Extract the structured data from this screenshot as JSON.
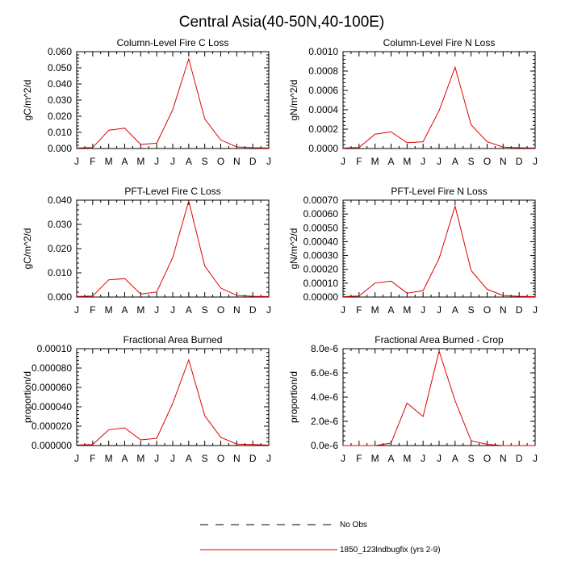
{
  "title": "Central Asia(40-50N,40-100E)",
  "months": [
    "J",
    "F",
    "M",
    "A",
    "M",
    "J",
    "J",
    "A",
    "S",
    "O",
    "N",
    "D",
    "J"
  ],
  "legend": [
    {
      "label": "No Obs",
      "style": "dashed",
      "color": "#000000"
    },
    {
      "label": "1850_123lndbugfix (yrs 2-9)",
      "style": "solid",
      "color": "#e00000"
    }
  ],
  "chart_data": [
    {
      "type": "line",
      "title": "Column-Level Fire C Loss",
      "ylabel": "gC/m^2/d",
      "ylim": [
        0,
        0.06
      ],
      "yticks": [
        0,
        0.01,
        0.02,
        0.03,
        0.04,
        0.05,
        0.06
      ],
      "ytick_labels": [
        "0.000",
        "0.010",
        "0.020",
        "0.030",
        "0.040",
        "0.050",
        "0.060"
      ],
      "series": [
        {
          "name": "1850_123lndbugfix (yrs 2-9)",
          "color": "#e00000",
          "values": [
            0.0003,
            0.0006,
            0.0113,
            0.0126,
            0.0025,
            0.0033,
            0.024,
            0.0555,
            0.0183,
            0.0053,
            0.001,
            0.0005,
            0.0003
          ]
        }
      ]
    },
    {
      "type": "line",
      "title": "Column-Level Fire N Loss",
      "ylabel": "gN/m^2/d",
      "ylim": [
        0,
        0.001
      ],
      "yticks": [
        0,
        0.0002,
        0.0004,
        0.0006,
        0.0008,
        0.001
      ],
      "ytick_labels": [
        "0.0000",
        "0.0002",
        "0.0004",
        "0.0006",
        "0.0008",
        "0.0010"
      ],
      "series": [
        {
          "name": "1850_123lndbugfix (yrs 2-9)",
          "color": "#e00000",
          "values": [
            5e-06,
            1e-05,
            0.000148,
            0.000172,
            6e-05,
            7e-05,
            0.00039,
            0.00084,
            0.000245,
            7e-05,
            1.5e-05,
            8e-06,
            5e-06
          ]
        }
      ]
    },
    {
      "type": "line",
      "title": "PFT-Level Fire C Loss",
      "ylabel": "gC/m^2/d",
      "ylim": [
        0,
        0.04
      ],
      "yticks": [
        0,
        0.01,
        0.02,
        0.03,
        0.04
      ],
      "ytick_labels": [
        "0.000",
        "0.010",
        "0.020",
        "0.030",
        "0.040"
      ],
      "series": [
        {
          "name": "1850_123lndbugfix (yrs 2-9)",
          "color": "#e00000",
          "values": [
            0.0002,
            0.0004,
            0.0071,
            0.0076,
            0.0012,
            0.0021,
            0.0163,
            0.0397,
            0.0128,
            0.0037,
            0.0007,
            0.0003,
            0.0002
          ]
        }
      ]
    },
    {
      "type": "line",
      "title": "PFT-Level Fire N Loss",
      "ylabel": "gN/m^2/d",
      "ylim": [
        0,
        0.0007
      ],
      "yticks": [
        0,
        0.0001,
        0.0002,
        0.0003,
        0.0004,
        0.0005,
        0.0006,
        0.0007
      ],
      "ytick_labels": [
        "0.00000",
        "0.00010",
        "0.00020",
        "0.00030",
        "0.00040",
        "0.00050",
        "0.00060",
        "0.00070"
      ],
      "series": [
        {
          "name": "1850_123lndbugfix (yrs 2-9)",
          "color": "#e00000",
          "values": [
            3e-06,
            7e-06,
            0.000101,
            0.000115,
            2.8e-05,
            4.6e-05,
            0.000278,
            0.000657,
            0.000192,
            5.6e-05,
            1.1e-05,
            5e-06,
            3e-06
          ]
        }
      ]
    },
    {
      "type": "line",
      "title": "Fractional Area Burned",
      "ylabel": "proportion/d",
      "ylim": [
        0,
        0.0001
      ],
      "yticks": [
        0,
        2e-05,
        4e-05,
        6e-05,
        8e-05,
        0.0001
      ],
      "ytick_labels": [
        "0.000000",
        "0.000020",
        "0.000040",
        "0.000060",
        "0.000080",
        "0.00010"
      ],
      "series": [
        {
          "name": "1850_123lndbugfix (yrs 2-9)",
          "color": "#e00000",
          "values": [
            5e-07,
            1e-06,
            1.62e-05,
            1.82e-05,
            5.8e-06,
            7.5e-06,
            4.35e-05,
            8.85e-05,
            3.08e-05,
            8.5e-06,
            1.5e-06,
            1e-06,
            5e-07
          ]
        }
      ]
    },
    {
      "type": "line",
      "title": "Fractional Area Burned - Crop",
      "ylabel": "proportion/d",
      "ylim": [
        0,
        8e-06
      ],
      "yticks": [
        0,
        2e-06,
        4e-06,
        6e-06,
        8e-06
      ],
      "ytick_labels": [
        "0.0e-6",
        "2.0e-6",
        "4.0e-6",
        "6.0e-6",
        "8.0e-6"
      ],
      "series": [
        {
          "name": "1850_123lndbugfix (yrs 2-9)",
          "color": "#e00000",
          "values": [
            0,
            0,
            0,
            2e-07,
            3.5e-06,
            2.4e-06,
            7.8e-06,
            3.7e-06,
            4e-07,
            1e-07,
            0,
            0,
            0
          ]
        }
      ]
    }
  ]
}
